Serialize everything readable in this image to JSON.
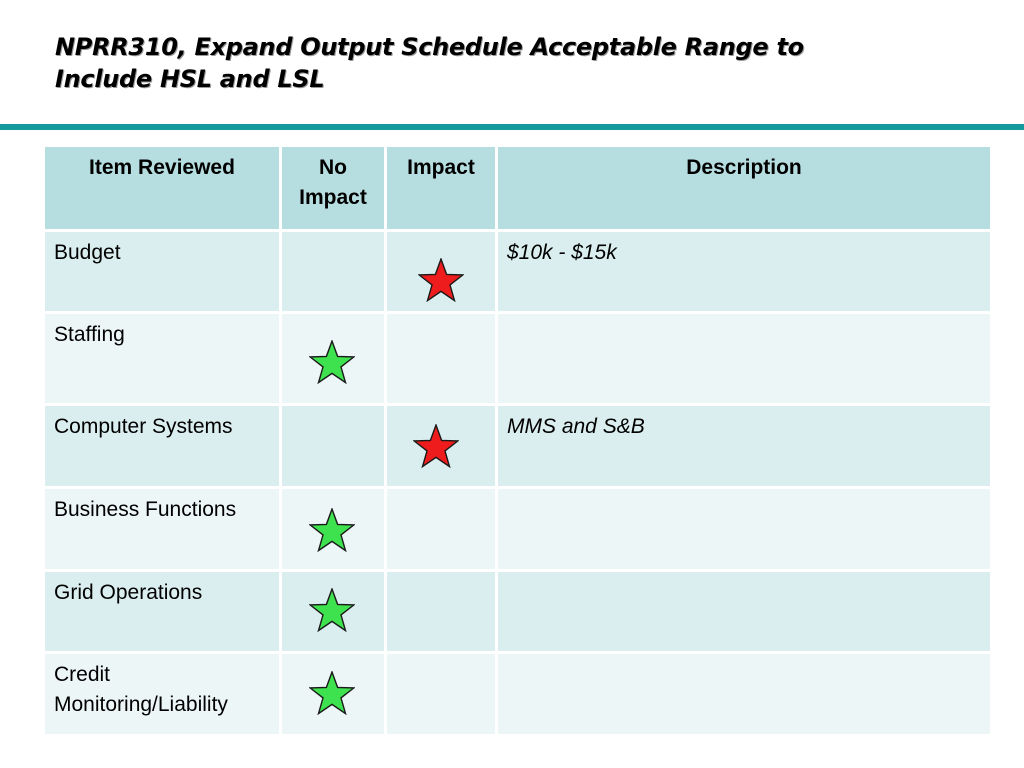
{
  "title": {
    "line1": "NPRR310, Expand Output Schedule Acceptable Range to",
    "line2": "Include HSL and LSL"
  },
  "table": {
    "headers": {
      "item": "Item Reviewed",
      "no_impact": "No Impact",
      "impact": "Impact",
      "description": "Description"
    },
    "rows": [
      {
        "item": "Budget",
        "mark": "impact",
        "description": "$10k - $15k"
      },
      {
        "item": "Staffing",
        "mark": "no-impact",
        "description": ""
      },
      {
        "item": "Computer Systems",
        "mark": "impact",
        "description": "MMS and S&B"
      },
      {
        "item": "Business Functions",
        "mark": "no-impact",
        "description": ""
      },
      {
        "item": "Grid Operations",
        "mark": "no-impact",
        "description": ""
      },
      {
        "item": "Credit Monitoring/Liability",
        "mark": "no-impact",
        "description": ""
      }
    ]
  },
  "icons": {
    "impact_star": "red-star-icon",
    "no_impact_star": "green-star-icon"
  },
  "colors": {
    "accent_rule": "#14999c",
    "header_fill": "#b6dde0",
    "row_fill_a": "#dbeeef",
    "row_fill_b": "#edf6f7",
    "impact_star": "#ee1c1c",
    "no_impact_star": "#3ee24e"
  }
}
